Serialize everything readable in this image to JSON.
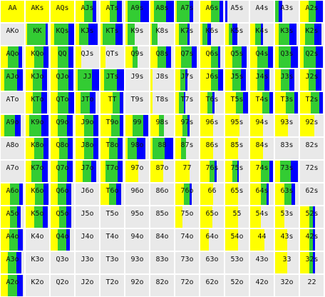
{
  "colors": {
    "cell_bg": "#e9e9e9",
    "yellow": "#ffff00",
    "green": "#33cc33",
    "blue": "#0000ff",
    "text": "#111111"
  },
  "cells": [
    {
      "label": "AA",
      "yellow": 1,
      "green": 0,
      "blue": 0
    },
    {
      "label": "AKs",
      "yellow": 1,
      "green": 0,
      "blue": 0
    },
    {
      "label": "AQs",
      "yellow": 1,
      "green": 0,
      "blue": 0
    },
    {
      "label": "AJs",
      "yellow": 0.35,
      "green": 0.35,
      "blue": 0.15
    },
    {
      "label": "ATs",
      "yellow": 0.4,
      "green": 0.3,
      "blue": 0.2
    },
    {
      "label": "A9s",
      "yellow": 0.1,
      "green": 0.55,
      "blue": 0.35
    },
    {
      "label": "A8s",
      "yellow": 0.15,
      "green": 0.5,
      "blue": 0.35
    },
    {
      "label": "A7s",
      "yellow": 0.05,
      "green": 0.55,
      "blue": 0.15
    },
    {
      "label": "A6s",
      "yellow": 0.45,
      "green": 0.35,
      "blue": 0.15
    },
    {
      "label": "A5s",
      "yellow": 0,
      "green": 0,
      "blue": 0.1
    },
    {
      "label": "A4s",
      "yellow": 0,
      "green": 0,
      "blue": 0
    },
    {
      "label": "A3s",
      "yellow": 0,
      "green": 0.15,
      "blue": 0.15
    },
    {
      "label": "A2s",
      "yellow": 0.35,
      "green": 0.3,
      "blue": 0.3
    },
    {
      "label": "AKo",
      "yellow": 0,
      "green": 0,
      "blue": 0
    },
    {
      "label": "KK",
      "yellow": 0.05,
      "green": 0.8,
      "blue": 0.1
    },
    {
      "label": "KQs",
      "yellow": 0.15,
      "green": 0.6,
      "blue": 0.25
    },
    {
      "label": "KJs",
      "yellow": 0.15,
      "green": 0.4,
      "blue": 0.4
    },
    {
      "label": "KTs",
      "yellow": 0.1,
      "green": 0.55,
      "blue": 0.3
    },
    {
      "label": "K9s",
      "yellow": 0.1,
      "green": 0.3,
      "blue": 0
    },
    {
      "label": "K8s",
      "yellow": 0.05,
      "green": 0.25,
      "blue": 0
    },
    {
      "label": "K7s",
      "yellow": 0.15,
      "green": 0.35,
      "blue": 0.1
    },
    {
      "label": "K6s",
      "yellow": 0.1,
      "green": 0.2,
      "blue": 0.15
    },
    {
      "label": "K5s",
      "yellow": 0.15,
      "green": 0.15,
      "blue": 0.2
    },
    {
      "label": "K4s",
      "yellow": 0.2,
      "green": 0.25,
      "blue": 0.1
    },
    {
      "label": "K3s",
      "yellow": 0.15,
      "green": 0.45,
      "blue": 0.3
    },
    {
      "label": "K2s",
      "yellow": 0.2,
      "green": 0.4,
      "blue": 0.3
    },
    {
      "label": "AQo",
      "yellow": 0.3,
      "green": 0.45,
      "blue": 0.15
    },
    {
      "label": "KQo",
      "yellow": 0.35,
      "green": 0.4,
      "blue": 0.2
    },
    {
      "label": "QQ",
      "yellow": 0.3,
      "green": 0.45,
      "blue": 0.2
    },
    {
      "label": "QJs",
      "yellow": 0.25,
      "green": 0,
      "blue": 0
    },
    {
      "label": "QTs",
      "yellow": 0.2,
      "green": 0,
      "blue": 0
    },
    {
      "label": "Q9s",
      "yellow": 0.3,
      "green": 0.2,
      "blue": 0
    },
    {
      "label": "Q8s",
      "yellow": 0.3,
      "green": 0.35,
      "blue": 0.2
    },
    {
      "label": "Q7s",
      "yellow": 0.25,
      "green": 0.45,
      "blue": 0.2
    },
    {
      "label": "Q6s",
      "yellow": 0.45,
      "green": 0.3,
      "blue": 0.1
    },
    {
      "label": "Q5s",
      "yellow": 0.3,
      "green": 0.4,
      "blue": 0.2
    },
    {
      "label": "Q4s",
      "yellow": 0.3,
      "green": 0.45,
      "blue": 0.2
    },
    {
      "label": "Q3s",
      "yellow": 0.15,
      "green": 0.5,
      "blue": 0.3
    },
    {
      "label": "Q2s",
      "yellow": 0.15,
      "green": 0.5,
      "blue": 0.3
    },
    {
      "label": "AJo",
      "yellow": 0.15,
      "green": 0.55,
      "blue": 0.25
    },
    {
      "label": "KJo",
      "yellow": 0.3,
      "green": 0.4,
      "blue": 0.2
    },
    {
      "label": "QJo",
      "yellow": 0.3,
      "green": 0.45,
      "blue": 0.2
    },
    {
      "label": "JJ",
      "yellow": 0.1,
      "green": 0.6,
      "blue": 0.3
    },
    {
      "label": "JTs",
      "yellow": 0.15,
      "green": 0.55,
      "blue": 0.3
    },
    {
      "label": "J9s",
      "yellow": 0,
      "green": 0,
      "blue": 0
    },
    {
      "label": "J8s",
      "yellow": 0.1,
      "green": 0,
      "blue": 0
    },
    {
      "label": "J7s",
      "yellow": 0.2,
      "green": 0.2,
      "blue": 0.1
    },
    {
      "label": "J6s",
      "yellow": 0.45,
      "green": 0.3,
      "blue": 0.2
    },
    {
      "label": "J5s",
      "yellow": 0.3,
      "green": 0.35,
      "blue": 0.2
    },
    {
      "label": "J4s",
      "yellow": 0.3,
      "green": 0.3,
      "blue": 0.2
    },
    {
      "label": "J3s",
      "yellow": 0.25,
      "green": 0.35,
      "blue": 0.2
    },
    {
      "label": "J2s",
      "yellow": 0.35,
      "green": 0.3,
      "blue": 0.25
    },
    {
      "label": "ATo",
      "yellow": 0,
      "green": 0,
      "blue": 0
    },
    {
      "label": "KTo",
      "yellow": 0.3,
      "green": 0.35,
      "blue": 0.25
    },
    {
      "label": "QTo",
      "yellow": 0.3,
      "green": 0.45,
      "blue": 0.25
    },
    {
      "label": "JTo",
      "yellow": 0.2,
      "green": 0.4,
      "blue": 0.25
    },
    {
      "label": "TT",
      "yellow": 0.5,
      "green": 0.3,
      "blue": 0.15
    },
    {
      "label": "T9s",
      "yellow": 0,
      "green": 0,
      "blue": 0
    },
    {
      "label": "T8s",
      "yellow": 0.1,
      "green": 0,
      "blue": 0
    },
    {
      "label": "T7s",
      "yellow": 0.15,
      "green": 0.2,
      "blue": 0.05
    },
    {
      "label": "T6s",
      "yellow": 0.3,
      "green": 0.2,
      "blue": 0.1
    },
    {
      "label": "T5s",
      "yellow": 0.45,
      "green": 0.3,
      "blue": 0.2
    },
    {
      "label": "T4s",
      "yellow": 0.5,
      "green": 0.3,
      "blue": 0.15
    },
    {
      "label": "T3s",
      "yellow": 0.45,
      "green": 0.35,
      "blue": 0.15
    },
    {
      "label": "T2s",
      "yellow": 0.45,
      "green": 0.35,
      "blue": 0.15
    },
    {
      "label": "A9o",
      "yellow": 0.15,
      "green": 0.45,
      "blue": 0.25
    },
    {
      "label": "K9o",
      "yellow": 0.15,
      "green": 0.5,
      "blue": 0.3
    },
    {
      "label": "Q9o",
      "yellow": 0.3,
      "green": 0.4,
      "blue": 0.25
    },
    {
      "label": "J9o",
      "yellow": 0.35,
      "green": 0.4,
      "blue": 0.2
    },
    {
      "label": "T9o",
      "yellow": 0.45,
      "green": 0.35,
      "blue": 0.15
    },
    {
      "label": "99",
      "yellow": 0.3,
      "green": 0.45,
      "blue": 0.2
    },
    {
      "label": "98s",
      "yellow": 0.35,
      "green": 0.2,
      "blue": 0
    },
    {
      "label": "97s",
      "yellow": 0.3,
      "green": 0.2,
      "blue": 0.1
    },
    {
      "label": "96s",
      "yellow": 0.55,
      "green": 0,
      "blue": 0
    },
    {
      "label": "95s",
      "yellow": 0.6,
      "green": 0,
      "blue": 0
    },
    {
      "label": "94s",
      "yellow": 0.55,
      "green": 0,
      "blue": 0
    },
    {
      "label": "93s",
      "yellow": 0.55,
      "green": 0,
      "blue": 0
    },
    {
      "label": "92s",
      "yellow": 0.6,
      "green": 0,
      "blue": 0
    },
    {
      "label": "A8o",
      "yellow": 0,
      "green": 0,
      "blue": 0
    },
    {
      "label": "K8o",
      "yellow": 0.35,
      "green": 0.4,
      "blue": 0.2
    },
    {
      "label": "Q8o",
      "yellow": 0.35,
      "green": 0.35,
      "blue": 0.2
    },
    {
      "label": "J8o",
      "yellow": 0.35,
      "green": 0.4,
      "blue": 0.2
    },
    {
      "label": "T8o",
      "yellow": 0.35,
      "green": 0.35,
      "blue": 0.2
    },
    {
      "label": "98o",
      "yellow": 0.1,
      "green": 0.4,
      "blue": 0.35
    },
    {
      "label": "88",
      "yellow": 0.1,
      "green": 0.5,
      "blue": 0.35
    },
    {
      "label": "87s",
      "yellow": 0.25,
      "green": 0.2,
      "blue": 0
    },
    {
      "label": "86s",
      "yellow": 0.55,
      "green": 0,
      "blue": 0
    },
    {
      "label": "85s",
      "yellow": 0.55,
      "green": 0,
      "blue": 0
    },
    {
      "label": "84s",
      "yellow": 0.55,
      "green": 0,
      "blue": 0
    },
    {
      "label": "83s",
      "yellow": 0,
      "green": 0,
      "blue": 0
    },
    {
      "label": "82s",
      "yellow": 0,
      "green": 0,
      "blue": 0
    },
    {
      "label": "A7o",
      "yellow": 0,
      "green": 0,
      "blue": 0
    },
    {
      "label": "K7o",
      "yellow": 0.25,
      "green": 0.45,
      "blue": 0.25
    },
    {
      "label": "Q7o",
      "yellow": 0.3,
      "green": 0.4,
      "blue": 0.25
    },
    {
      "label": "J7o",
      "yellow": 0.3,
      "green": 0.35,
      "blue": 0.2
    },
    {
      "label": "T7o",
      "yellow": 0.2,
      "green": 0.5,
      "blue": 0.2
    },
    {
      "label": "97o",
      "yellow": 0.55,
      "green": 0,
      "blue": 0
    },
    {
      "label": "87o",
      "yellow": 0.55,
      "green": 0,
      "blue": 0
    },
    {
      "label": "77",
      "yellow": 0.6,
      "green": 0,
      "blue": 0
    },
    {
      "label": "76s",
      "yellow": 0.4,
      "green": 0.2,
      "blue": 0.1
    },
    {
      "label": "75s",
      "yellow": 0.3,
      "green": 0.2,
      "blue": 0.05
    },
    {
      "label": "74s",
      "yellow": 0.45,
      "green": 0.35,
      "blue": 0.15
    },
    {
      "label": "73s",
      "yellow": 0.2,
      "green": 0.45,
      "blue": 0.3
    },
    {
      "label": "72s",
      "yellow": 0,
      "green": 0,
      "blue": 0
    },
    {
      "label": "A6o",
      "yellow": 0.4,
      "green": 0.4,
      "blue": 0.15
    },
    {
      "label": "K6o",
      "yellow": 0.4,
      "green": 0.35,
      "blue": 0.2
    },
    {
      "label": "Q6o",
      "yellow": 0.3,
      "green": 0.35,
      "blue": 0.2
    },
    {
      "label": "J6o",
      "yellow": 0,
      "green": 0,
      "blue": 0
    },
    {
      "label": "T6o",
      "yellow": 0.35,
      "green": 0.3,
      "blue": 0.2
    },
    {
      "label": "96o",
      "yellow": 0,
      "green": 0,
      "blue": 0
    },
    {
      "label": "86o",
      "yellow": 0,
      "green": 0,
      "blue": 0
    },
    {
      "label": "76o",
      "yellow": 0.35,
      "green": 0.25,
      "blue": 0.1
    },
    {
      "label": "66",
      "yellow": 0.55,
      "green": 0,
      "blue": 0
    },
    {
      "label": "65s",
      "yellow": 0.55,
      "green": 0,
      "blue": 0
    },
    {
      "label": "64s",
      "yellow": 0.45,
      "green": 0.25,
      "blue": 0.1
    },
    {
      "label": "63s",
      "yellow": 0.4,
      "green": 0.3,
      "blue": 0.15
    },
    {
      "label": "62s",
      "yellow": 0,
      "green": 0,
      "blue": 0
    },
    {
      "label": "A5o",
      "yellow": 0.4,
      "green": 0.3,
      "blue": 0.15
    },
    {
      "label": "K5o",
      "yellow": 0.35,
      "green": 0.35,
      "blue": 0.2
    },
    {
      "label": "Q5o",
      "yellow": 0.35,
      "green": 0.3,
      "blue": 0.2
    },
    {
      "label": "J5o",
      "yellow": 0,
      "green": 0,
      "blue": 0
    },
    {
      "label": "T5o",
      "yellow": 0,
      "green": 0,
      "blue": 0
    },
    {
      "label": "95o",
      "yellow": 0,
      "green": 0,
      "blue": 0
    },
    {
      "label": "85o",
      "yellow": 0,
      "green": 0,
      "blue": 0
    },
    {
      "label": "75o",
      "yellow": 0.3,
      "green": 0,
      "blue": 0
    },
    {
      "label": "65o",
      "yellow": 0.5,
      "green": 0,
      "blue": 0
    },
    {
      "label": "55",
      "yellow": 0.55,
      "green": 0,
      "blue": 0
    },
    {
      "label": "54s",
      "yellow": 0.45,
      "green": 0,
      "blue": 0
    },
    {
      "label": "53s",
      "yellow": 0.4,
      "green": 0,
      "blue": 0
    },
    {
      "label": "52s",
      "yellow": 0.4,
      "green": 0.15,
      "blue": 0.1
    },
    {
      "label": "A4o",
      "yellow": 0.35,
      "green": 0.35,
      "blue": 0.2
    },
    {
      "label": "K4o",
      "yellow": 0,
      "green": 0,
      "blue": 0
    },
    {
      "label": "Q4o",
      "yellow": 0.3,
      "green": 0.35,
      "blue": 0.15
    },
    {
      "label": "J4o",
      "yellow": 0,
      "green": 0,
      "blue": 0
    },
    {
      "label": "T4o",
      "yellow": 0,
      "green": 0,
      "blue": 0
    },
    {
      "label": "94o",
      "yellow": 0,
      "green": 0,
      "blue": 0
    },
    {
      "label": "84o",
      "yellow": 0,
      "green": 0,
      "blue": 0
    },
    {
      "label": "74o",
      "yellow": 0,
      "green": 0,
      "blue": 0
    },
    {
      "label": "64o",
      "yellow": 0.35,
      "green": 0,
      "blue": 0
    },
    {
      "label": "54o",
      "yellow": 0.55,
      "green": 0,
      "blue": 0
    },
    {
      "label": "44",
      "yellow": 0.6,
      "green": 0,
      "blue": 0
    },
    {
      "label": "43s",
      "yellow": 0.5,
      "green": 0,
      "blue": 0
    },
    {
      "label": "42s",
      "yellow": 0.4,
      "green": 0.15,
      "blue": 0.1
    },
    {
      "label": "A3o",
      "yellow": 0.3,
      "green": 0.35,
      "blue": 0.2
    },
    {
      "label": "K3o",
      "yellow": 0,
      "green": 0,
      "blue": 0
    },
    {
      "label": "Q3o",
      "yellow": 0,
      "green": 0,
      "blue": 0
    },
    {
      "label": "J3o",
      "yellow": 0,
      "green": 0,
      "blue": 0
    },
    {
      "label": "T3o",
      "yellow": 0,
      "green": 0,
      "blue": 0
    },
    {
      "label": "93o",
      "yellow": 0,
      "green": 0,
      "blue": 0
    },
    {
      "label": "83o",
      "yellow": 0,
      "green": 0,
      "blue": 0
    },
    {
      "label": "73o",
      "yellow": 0,
      "green": 0,
      "blue": 0
    },
    {
      "label": "63o",
      "yellow": 0,
      "green": 0,
      "blue": 0
    },
    {
      "label": "53o",
      "yellow": 0,
      "green": 0,
      "blue": 0
    },
    {
      "label": "43o",
      "yellow": 0,
      "green": 0,
      "blue": 0
    },
    {
      "label": "33",
      "yellow": 0.5,
      "green": 0,
      "blue": 0
    },
    {
      "label": "32s",
      "yellow": 0.4,
      "green": 0.15,
      "blue": 0.1
    },
    {
      "label": "A2o",
      "yellow": 0.3,
      "green": 0.4,
      "blue": 0.25
    },
    {
      "label": "K2o",
      "yellow": 0,
      "green": 0,
      "blue": 0
    },
    {
      "label": "Q2o",
      "yellow": 0,
      "green": 0,
      "blue": 0
    },
    {
      "label": "J2o",
      "yellow": 0,
      "green": 0,
      "blue": 0
    },
    {
      "label": "T2o",
      "yellow": 0,
      "green": 0,
      "blue": 0
    },
    {
      "label": "92o",
      "yellow": 0,
      "green": 0,
      "blue": 0
    },
    {
      "label": "82o",
      "yellow": 0,
      "green": 0,
      "blue": 0
    },
    {
      "label": "72o",
      "yellow": 0,
      "green": 0,
      "blue": 0
    },
    {
      "label": "62o",
      "yellow": 0,
      "green": 0,
      "blue": 0
    },
    {
      "label": "52o",
      "yellow": 0,
      "green": 0,
      "blue": 0
    },
    {
      "label": "42o",
      "yellow": 0,
      "green": 0,
      "blue": 0
    },
    {
      "label": "32o",
      "yellow": 0,
      "green": 0,
      "blue": 0
    },
    {
      "label": "22",
      "yellow": 0,
      "green": 0,
      "blue": 0
    }
  ]
}
